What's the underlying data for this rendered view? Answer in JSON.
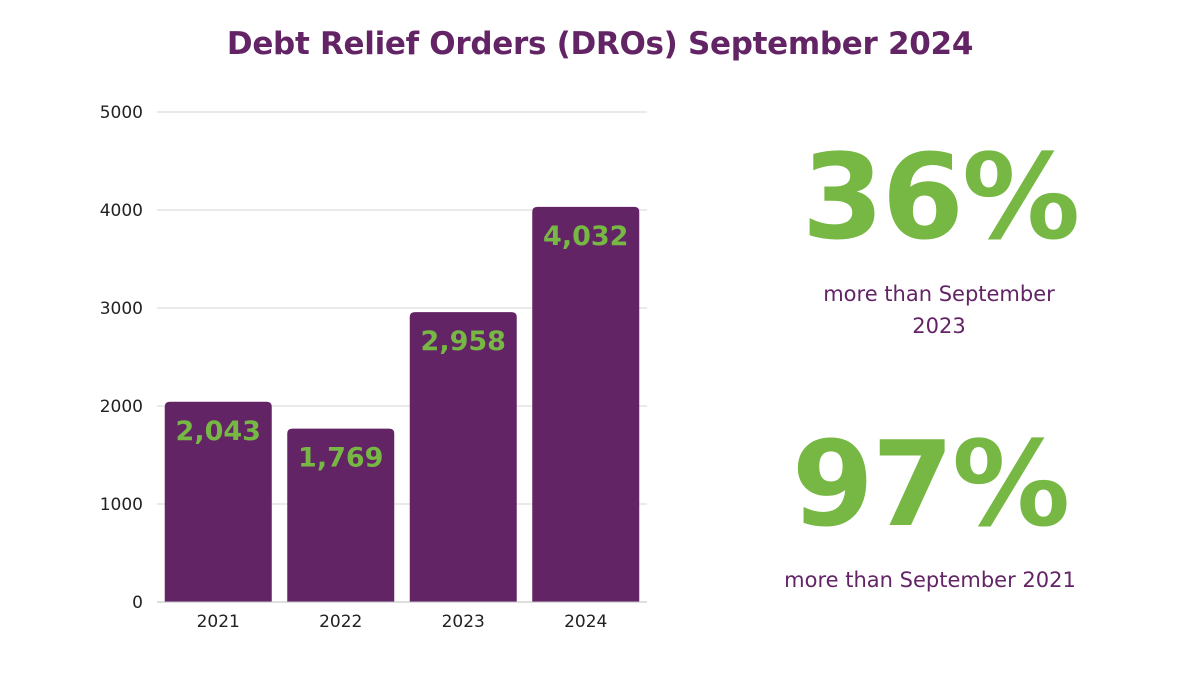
{
  "colors": {
    "purple": "#632466",
    "green": "#76b843",
    "text_dark": "#222222",
    "grid": "#d6d6d6"
  },
  "chart_data": {
    "type": "bar",
    "title": "Debt Relief Orders (DROs) September 2024",
    "categories": [
      "2021",
      "2022",
      "2023",
      "2024"
    ],
    "values": [
      2043,
      1769,
      2958,
      4032
    ],
    "data_labels": [
      "2,043",
      "1,769",
      "2,958",
      "4,032"
    ],
    "xlabel": "",
    "ylabel": "",
    "ylim": [
      0,
      5000
    ],
    "yticks": [
      0,
      1000,
      2000,
      3000,
      4000,
      5000
    ],
    "grid": true,
    "legend": "none"
  },
  "stats": [
    {
      "value": "36%",
      "caption": "more than September 2023"
    },
    {
      "value": "97%",
      "caption": "more than September 2021"
    }
  ]
}
